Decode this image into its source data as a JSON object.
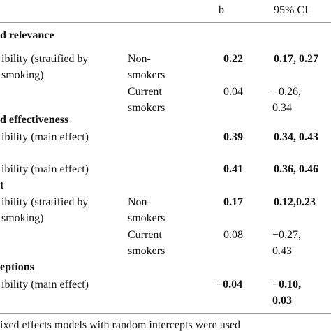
{
  "header": {
    "b": "b",
    "ci": "95% CI"
  },
  "sections": [
    {
      "heading": "d relevance",
      "rows": [
        {
          "label": [
            "ibility (stratified by",
            "smoking)"
          ],
          "group": [
            "Non-",
            "smokers"
          ],
          "b": "0.22",
          "ci": [
            "0.17, 0.27"
          ]
        },
        {
          "group": [
            "Current",
            "smokers"
          ],
          "b": "0.04",
          "ci": [
            "−0.26,",
            "0.34"
          ]
        }
      ]
    },
    {
      "heading": "d effectiveness",
      "rows": [
        {
          "label": [
            "ibility (main effect)"
          ],
          "b": "0.39",
          "ci": [
            "0.34, 0.43"
          ]
        },
        {
          "label": [
            "ibility (main effect)"
          ],
          "b": "0.41",
          "ci": [
            "0.36, 0.46"
          ]
        }
      ]
    },
    {
      "heading": "t",
      "rows": [
        {
          "label": [
            "ibility (stratified by",
            "smoking)"
          ],
          "group": [
            "Non-",
            "smokers"
          ],
          "b": "0.17",
          "ci": [
            "0.12,0.23"
          ]
        },
        {
          "group": [
            "Current",
            "smokers"
          ],
          "b": "0.08",
          "ci": [
            "−0.27,",
            "0.43"
          ]
        }
      ]
    },
    {
      "heading": "eptions",
      "rows": [
        {
          "label": [
            "ibility (main effect)"
          ],
          "b": "−0.04",
          "ci": [
            "−0.10,",
            "0.03"
          ]
        }
      ]
    }
  ],
  "footer": "ixed effects models with random intercepts were used"
}
